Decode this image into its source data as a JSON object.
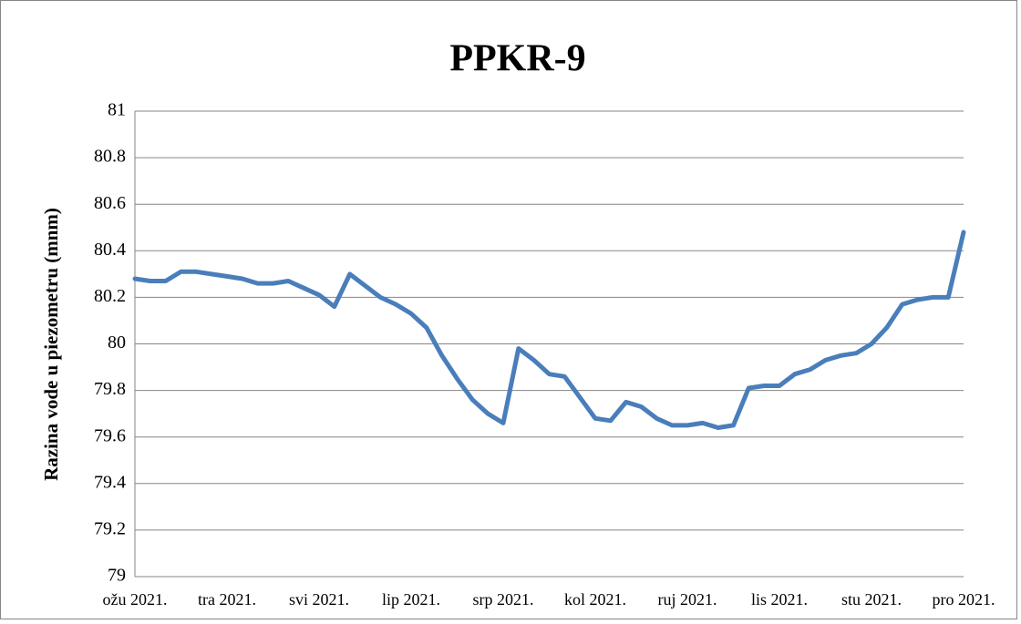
{
  "chart_data": {
    "type": "line",
    "title": "PPKR-9",
    "y_label": "Razina vode u piezometru (mnm)",
    "categories": [
      "ožu 2021.",
      null,
      null,
      null,
      null,
      null,
      "tra 2021.",
      null,
      null,
      null,
      null,
      null,
      "svi 2021.",
      null,
      null,
      null,
      null,
      null,
      "lip 2021.",
      null,
      null,
      null,
      null,
      null,
      "srp 2021.",
      null,
      null,
      null,
      null,
      null,
      "kol 2021.",
      null,
      null,
      null,
      null,
      null,
      "ruj 2021.",
      null,
      null,
      null,
      null,
      null,
      "lis 2021.",
      null,
      null,
      null,
      null,
      null,
      "stu 2021.",
      null,
      null,
      null,
      null,
      null,
      "pro 2021."
    ],
    "series": [
      {
        "name": "PPKR-9",
        "color": "#4a7ebb",
        "values": [
          80.28,
          80.27,
          80.27,
          80.31,
          80.31,
          80.3,
          80.29,
          80.28,
          80.26,
          80.26,
          80.27,
          80.24,
          80.21,
          80.16,
          80.3,
          80.25,
          80.2,
          80.17,
          80.13,
          80.07,
          79.95,
          79.85,
          79.76,
          79.7,
          79.66,
          79.98,
          79.93,
          79.87,
          79.86,
          79.77,
          79.68,
          79.67,
          79.75,
          79.73,
          79.68,
          79.65,
          79.65,
          79.66,
          79.64,
          79.65,
          79.81,
          79.82,
          79.82,
          79.87,
          79.89,
          79.93,
          79.95,
          79.96,
          80.0,
          80.07,
          80.17,
          80.19,
          80.2,
          80.2,
          80.48
        ]
      }
    ],
    "ylim": [
      79,
      81
    ],
    "yticks": [
      79,
      79.2,
      79.4,
      79.6,
      79.8,
      80,
      80.2,
      80.4,
      80.6,
      80.8,
      81
    ],
    "grid": true
  }
}
